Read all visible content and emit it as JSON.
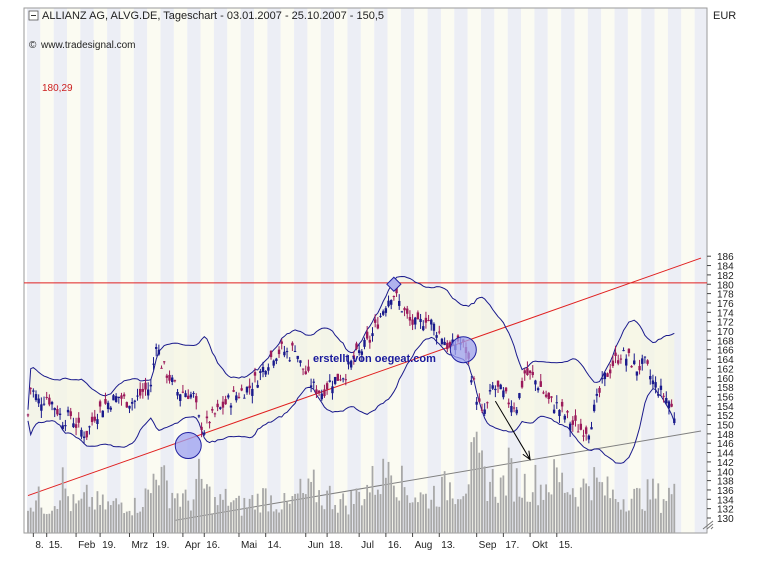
{
  "header": {
    "title": "ALLIANZ AG, ALVG.DE, Tageschart - 03.01.2007 - 25.10.2007 - 150,5",
    "source": "www.tradesignal.com",
    "currency": "EUR"
  },
  "annotation": "erstellt von oegeat.com",
  "resistance_label": "180,29",
  "colors": {
    "candle_up": "#1a1a8c",
    "candle_down": "#9b1a5a",
    "band_line": "#1a1a8c",
    "band_fill": "#f6f5e3",
    "trend_red": "#e02020",
    "horizontal_red": "#e02020",
    "support_gray": "#808080",
    "volume": "#a8a8a8",
    "stripe_a": "#eceef5",
    "stripe_b": "#fbfbf2",
    "text_red": "#cc2020",
    "annotation_blue": "#1a1a9c"
  },
  "chart_data": {
    "type": "candlestick",
    "title": "ALLIANZ AG, ALVG.DE, Tageschart - 03.01.2007 - 25.10.2007 - 150,5",
    "ylabel": "EUR",
    "ylim": [
      129,
      188
    ],
    "y_ticks": [
      130,
      132,
      134,
      136,
      138,
      140,
      142,
      144,
      146,
      148,
      150,
      152,
      154,
      156,
      158,
      160,
      162,
      164,
      166,
      168,
      170,
      172,
      174,
      176,
      178,
      180,
      182,
      184,
      186
    ],
    "x_ticks": [
      "8.",
      "15.",
      "Feb",
      "19.",
      "Mrz",
      "19.",
      "Apr",
      "16.",
      "Mai",
      "14.",
      "Jun",
      "18.",
      "Jul",
      "16.",
      "Aug",
      "13.",
      "Sep",
      "17.",
      "Okt",
      "15."
    ],
    "horizontal_line": {
      "label": "180,29",
      "value": 180.29
    },
    "close_path": [
      [
        1,
        158
      ],
      [
        4,
        155
      ],
      [
        7,
        156
      ],
      [
        10,
        154
      ],
      [
        13,
        151
      ],
      [
        16,
        152
      ],
      [
        19,
        149
      ],
      [
        22,
        148
      ],
      [
        25,
        152
      ],
      [
        28,
        154
      ],
      [
        31,
        155
      ],
      [
        34,
        156
      ],
      [
        37,
        155
      ],
      [
        40,
        155
      ],
      [
        43,
        157
      ],
      [
        46,
        158
      ],
      [
        48,
        168
      ],
      [
        50,
        163
      ],
      [
        53,
        160
      ],
      [
        56,
        157
      ],
      [
        59,
        157
      ],
      [
        62,
        156
      ],
      [
        64,
        151
      ],
      [
        66,
        149
      ],
      [
        68,
        151
      ],
      [
        70,
        152
      ],
      [
        73,
        154
      ],
      [
        75,
        155
      ],
      [
        77,
        156
      ],
      [
        80,
        157
      ],
      [
        83,
        158
      ],
      [
        86,
        160
      ],
      [
        89,
        163
      ],
      [
        92,
        165
      ],
      [
        95,
        166
      ],
      [
        98,
        165
      ],
      [
        100,
        167
      ],
      [
        102,
        163
      ],
      [
        104,
        161
      ],
      [
        107,
        158
      ],
      [
        110,
        157
      ],
      [
        113,
        159
      ],
      [
        116,
        160
      ],
      [
        119,
        161
      ],
      [
        122,
        164
      ],
      [
        125,
        166
      ],
      [
        128,
        168
      ],
      [
        131,
        172
      ],
      [
        134,
        176
      ],
      [
        136,
        178
      ],
      [
        137,
        178
      ],
      [
        140,
        175
      ],
      [
        143,
        172
      ],
      [
        146,
        171
      ],
      [
        149,
        173
      ],
      [
        152,
        171
      ],
      [
        155,
        169
      ],
      [
        158,
        166
      ],
      [
        161,
        168
      ],
      [
        164,
        166
      ],
      [
        166,
        161
      ],
      [
        168,
        156
      ],
      [
        170,
        152
      ],
      [
        172,
        154
      ],
      [
        174,
        158
      ],
      [
        177,
        157
      ],
      [
        180,
        155
      ],
      [
        183,
        154
      ],
      [
        186,
        161
      ],
      [
        189,
        160
      ],
      [
        192,
        158
      ],
      [
        195,
        155
      ],
      [
        198,
        154
      ],
      [
        201,
        152
      ],
      [
        204,
        150
      ],
      [
        207,
        149
      ],
      [
        210,
        149
      ],
      [
        213,
        155
      ],
      [
        216,
        160
      ],
      [
        219,
        163
      ],
      [
        222,
        165
      ],
      [
        225,
        164
      ],
      [
        228,
        162
      ],
      [
        231,
        163
      ],
      [
        234,
        159
      ],
      [
        237,
        157
      ],
      [
        240,
        155
      ],
      [
        242,
        152
      ]
    ],
    "volume_path": [
      [
        1,
        2.2
      ],
      [
        4,
        2.5
      ],
      [
        7,
        2.0
      ],
      [
        10,
        2.4
      ],
      [
        13,
        3.8
      ],
      [
        16,
        2.2
      ],
      [
        19,
        2.0
      ],
      [
        22,
        2.6
      ],
      [
        25,
        2.3
      ],
      [
        28,
        2.1
      ],
      [
        31,
        2.0
      ],
      [
        34,
        2.2
      ],
      [
        37,
        2.4
      ],
      [
        40,
        2.0
      ],
      [
        43,
        2.6
      ],
      [
        46,
        3.0
      ],
      [
        48,
        5.8
      ],
      [
        50,
        4.0
      ],
      [
        53,
        3.2
      ],
      [
        56,
        2.8
      ],
      [
        59,
        2.4
      ],
      [
        62,
        2.6
      ],
      [
        64,
        4.0
      ],
      [
        66,
        3.4
      ],
      [
        68,
        2.8
      ],
      [
        70,
        2.2
      ],
      [
        73,
        2.4
      ],
      [
        75,
        2.6
      ],
      [
        77,
        2.2
      ],
      [
        80,
        2.0
      ],
      [
        83,
        2.3
      ],
      [
        86,
        2.5
      ],
      [
        89,
        2.8
      ],
      [
        92,
        2.4
      ],
      [
        95,
        2.2
      ],
      [
        98,
        2.0
      ],
      [
        100,
        2.6
      ],
      [
        102,
        3.0
      ],
      [
        104,
        2.8
      ],
      [
        107,
        3.4
      ],
      [
        110,
        2.6
      ],
      [
        113,
        2.8
      ],
      [
        116,
        2.4
      ],
      [
        119,
        2.2
      ],
      [
        122,
        2.6
      ],
      [
        125,
        3.0
      ],
      [
        128,
        3.6
      ],
      [
        131,
        4.0
      ],
      [
        134,
        4.4
      ],
      [
        136,
        7.4
      ],
      [
        137,
        4.8
      ],
      [
        140,
        3.6
      ],
      [
        143,
        3.0
      ],
      [
        146,
        2.8
      ],
      [
        149,
        2.6
      ],
      [
        152,
        3.0
      ],
      [
        155,
        3.2
      ],
      [
        158,
        3.6
      ],
      [
        161,
        3.4
      ],
      [
        164,
        4.0
      ],
      [
        166,
        5.0
      ],
      [
        168,
        5.4
      ],
      [
        170,
        4.6
      ],
      [
        172,
        4.0
      ],
      [
        174,
        3.8
      ],
      [
        177,
        3.4
      ],
      [
        180,
        4.6
      ],
      [
        183,
        3.8
      ],
      [
        186,
        3.6
      ],
      [
        189,
        4.0
      ],
      [
        192,
        3.4
      ],
      [
        195,
        3.8
      ],
      [
        198,
        4.2
      ],
      [
        201,
        3.6
      ],
      [
        204,
        3.4
      ],
      [
        207,
        3.0
      ],
      [
        210,
        4.4
      ],
      [
        213,
        3.6
      ],
      [
        216,
        3.2
      ],
      [
        219,
        2.8
      ],
      [
        222,
        2.6
      ],
      [
        225,
        2.8
      ],
      [
        228,
        2.6
      ],
      [
        231,
        2.8
      ],
      [
        234,
        3.0
      ],
      [
        237,
        2.6
      ],
      [
        240,
        3.0
      ],
      [
        242,
        2.8
      ]
    ],
    "trend_lines": [
      {
        "color": "red",
        "from": [
          0,
          134.8
        ],
        "to": [
          252,
          185.6
        ]
      },
      {
        "color": "gray",
        "from": [
          55,
          129.5
        ],
        "to": [
          252,
          148.6
        ]
      }
    ],
    "markers": [
      {
        "shape": "circle",
        "x": 60,
        "y": 145.5
      },
      {
        "shape": "circle",
        "x": 163,
        "y": 166.0
      },
      {
        "shape": "diamond",
        "x": 137,
        "y": 180.0
      }
    ],
    "arrow": {
      "from": [
        175,
        155
      ],
      "to": [
        188,
        142.5
      ]
    }
  }
}
